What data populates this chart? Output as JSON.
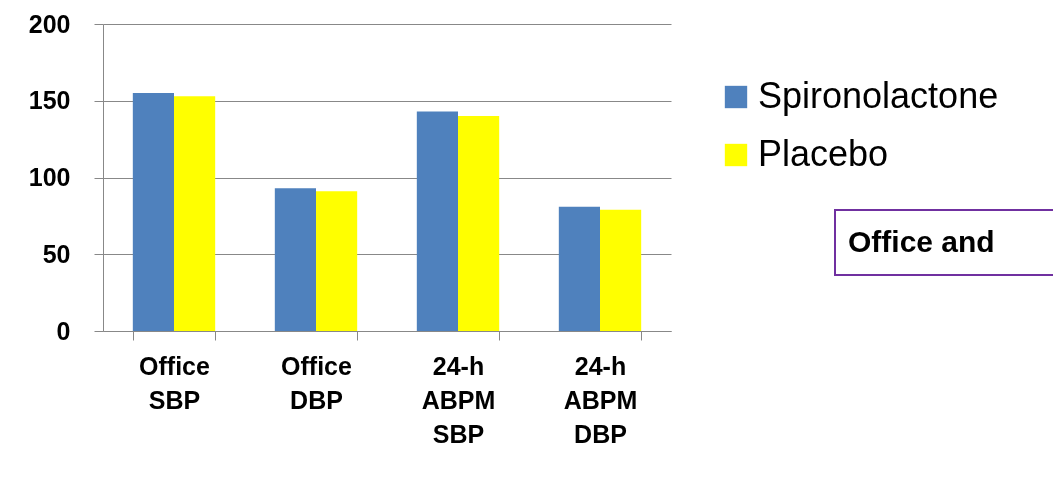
{
  "chart_data": {
    "type": "bar",
    "categories": [
      "Office SBP",
      "Office DBP",
      "24-h ABPM SBP",
      "24-h ABPM DBP"
    ],
    "series": [
      {
        "name": "Spironolactone",
        "color": "#4f81bd",
        "values": [
          155,
          93,
          143,
          81
        ]
      },
      {
        "name": "Placebo",
        "color": "#ffff00",
        "values": [
          153,
          91,
          140,
          79
        ]
      }
    ],
    "ylim": [
      0,
      200
    ],
    "yticks": [
      0,
      50,
      100,
      150,
      200
    ],
    "grid": "y",
    "legend": "top right",
    "annotations": [
      "Office and"
    ]
  }
}
